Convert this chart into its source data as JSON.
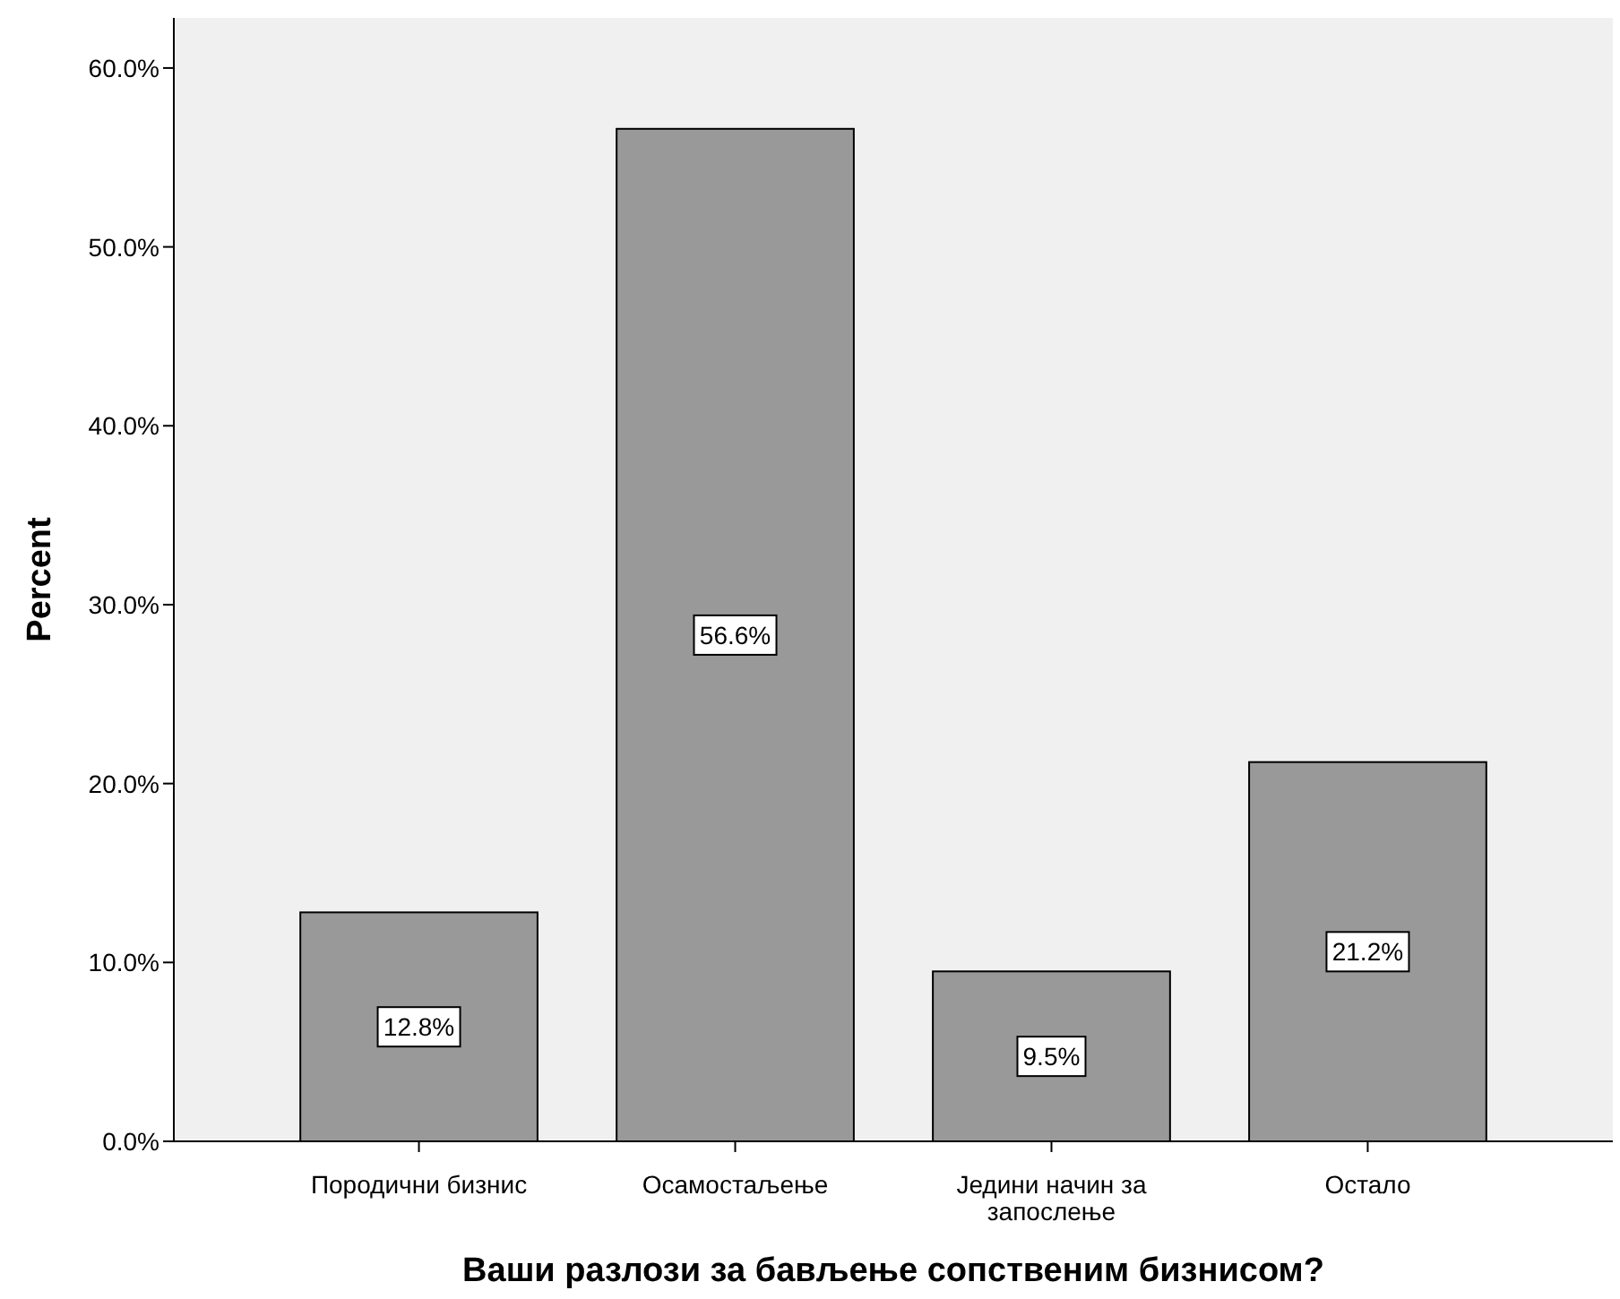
{
  "chart_data": {
    "type": "bar",
    "xlabel": "Ваши разлози за бављење сопственим бизнисом?",
    "ylabel": "Percent",
    "categories": [
      "Породични бизнис",
      "Осамостаљење",
      "Једини начин за запослење",
      "Остало"
    ],
    "values": [
      12.8,
      56.6,
      9.5,
      21.2
    ],
    "value_labels": [
      "12.8%",
      "56.6%",
      "9.5%",
      "21.2%"
    ],
    "color": "#999999",
    "ylim": [
      0,
      62.8
    ],
    "yticks": [
      {
        "value": 0,
        "label": "0.0%"
      },
      {
        "value": 10,
        "label": "10.0%"
      },
      {
        "value": 20,
        "label": "20.0%"
      },
      {
        "value": 30,
        "label": "30.0%"
      },
      {
        "value": 40,
        "label": "40.0%"
      },
      {
        "value": 50,
        "label": "50.0%"
      },
      {
        "value": 60,
        "label": "60.0%"
      }
    ],
    "stacked": false
  }
}
